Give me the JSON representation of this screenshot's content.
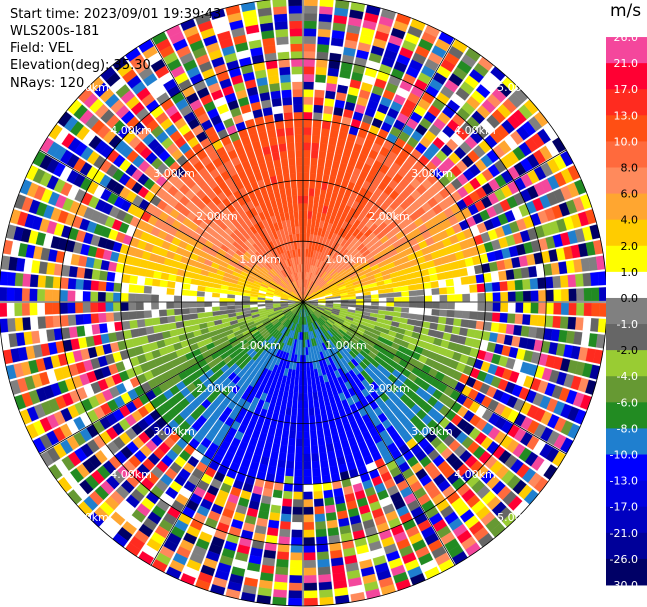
{
  "header": {
    "start_time": "Start time: 2023/09/01 19:39:43",
    "instrument": "WLS200s-181",
    "field": "Field: VEL",
    "elevation": "Elevation(deg): 35.30",
    "nrays": "NRays: 120"
  },
  "colorbar": {
    "unit": "m/s",
    "ticks": [
      "26.0",
      "21.0",
      "17.0",
      "13.0",
      "10.0",
      "8.0",
      "6.0",
      "4.0",
      "2.0",
      "1.0",
      "0.0",
      "-1.0",
      "-2.0",
      "-4.0",
      "-6.0",
      "-8.0",
      "-10.0",
      "-13.0",
      "-17.0",
      "-21.0",
      "-26.0",
      "-30.0"
    ],
    "colors": [
      "#f4479c",
      "#ff0033",
      "#ff2b1f",
      "#ff4f14",
      "#ff6a3d",
      "#ff8a5c",
      "#ffa630",
      "#ffcc00",
      "#ffff00",
      "#ffffff",
      "#808080",
      "#666666",
      "#99cc33",
      "#669933",
      "#228b22",
      "#1f7fcf",
      "#0000ff",
      "#0000e0",
      "#0000c0",
      "#000099",
      "#000066"
    ]
  },
  "chart_data": {
    "type": "heatmap",
    "subtype": "ppi-polar",
    "field": "VEL",
    "elevation_deg": 35.3,
    "nrays": 120,
    "range_rings_km": [
      1.0,
      2.0,
      3.0,
      4.0,
      5.0
    ],
    "ring_labels": [
      "1.00km",
      "2.00km",
      "3.00km",
      "4.00km",
      "5.00km"
    ],
    "max_range_km": 5.0,
    "valid_range_km": 3.0,
    "unit": "m/s",
    "color_scale_min": -30.0,
    "color_scale_max": 26.0,
    "velocity_pattern": {
      "north_sector": "positive (about 10 to 13 m/s)",
      "south_sector": "negative (about -13 to -17 m/s)",
      "east_west": "near 0 m/s"
    },
    "beyond_valid_range": "noise"
  }
}
